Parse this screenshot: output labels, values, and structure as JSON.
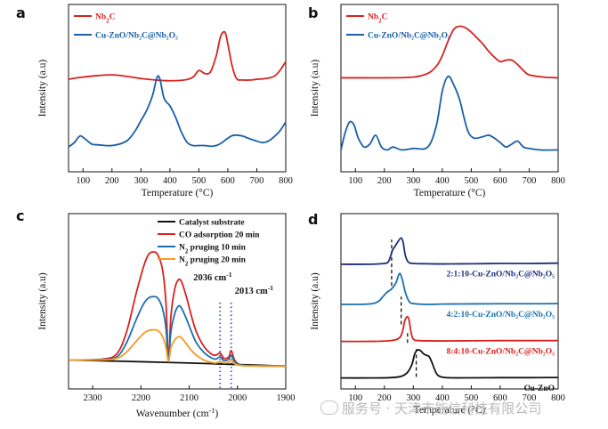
{
  "watermark": "服务号 · 天津市能信科技有限公司",
  "chart_data": [
    {
      "panel": "a",
      "type": "line",
      "xlabel": "Temperature (°C)",
      "ylabel": "Intensity (a.u)",
      "xlim": [
        50,
        800
      ],
      "xticks": [
        100,
        200,
        300,
        400,
        500,
        600,
        700,
        800
      ],
      "ylim": [
        0,
        1
      ],
      "yticks_shown": false,
      "legend_position": "top-left",
      "series": [
        {
          "name": "Nb2C",
          "label_base": "Nb",
          "label_sub": "2",
          "label_tail": "C",
          "color": "#d6231f",
          "x": [
            50,
            80,
            100,
            150,
            200,
            250,
            300,
            350,
            400,
            450,
            480,
            500,
            520,
            540,
            560,
            575,
            590,
            600,
            615,
            630,
            650,
            680,
            700,
            730,
            760,
            780,
            800
          ],
          "y": [
            0.56,
            0.57,
            0.575,
            0.585,
            0.59,
            0.58,
            0.565,
            0.555,
            0.55,
            0.555,
            0.575,
            0.62,
            0.6,
            0.61,
            0.72,
            0.85,
            0.88,
            0.8,
            0.65,
            0.565,
            0.555,
            0.555,
            0.56,
            0.565,
            0.58,
            0.62,
            0.68
          ]
        },
        {
          "name": "Cu-ZnO/Nb2C@Nb2O5",
          "label": "Cu-ZnO/Nb₂C@Nb₂O₅",
          "color": "#1a5fa8",
          "x": [
            50,
            70,
            90,
            110,
            130,
            150,
            200,
            250,
            280,
            300,
            320,
            340,
            355,
            365,
            380,
            400,
            420,
            440,
            460,
            480,
            500,
            520,
            540,
            560,
            580,
            600,
            620,
            650,
            670,
            700,
            720,
            740,
            760,
            780,
            800
          ],
          "y": [
            0.1,
            0.13,
            0.175,
            0.15,
            0.12,
            0.115,
            0.11,
            0.14,
            0.21,
            0.28,
            0.35,
            0.45,
            0.57,
            0.565,
            0.43,
            0.38,
            0.3,
            0.2,
            0.13,
            0.11,
            0.11,
            0.11,
            0.105,
            0.11,
            0.13,
            0.16,
            0.18,
            0.175,
            0.16,
            0.14,
            0.13,
            0.14,
            0.17,
            0.21,
            0.27
          ]
        }
      ]
    },
    {
      "panel": "b",
      "type": "line",
      "xlabel": "Temperature (°C)",
      "ylabel": "Intensity (a.u)",
      "xlim": [
        50,
        800
      ],
      "xticks": [
        100,
        200,
        300,
        400,
        500,
        600,
        700,
        800
      ],
      "ylim": [
        0,
        1
      ],
      "yticks_shown": false,
      "legend_position": "top-left",
      "series": [
        {
          "name": "Nb2C",
          "label_base": "Nb",
          "label_sub": "2",
          "label_tail": "C",
          "color": "#d6231f",
          "x": [
            50,
            100,
            200,
            300,
            350,
            380,
            400,
            420,
            440,
            460,
            480,
            500,
            520,
            540,
            560,
            580,
            600,
            620,
            640,
            660,
            680,
            700,
            750,
            800
          ],
          "y": [
            0.57,
            0.57,
            0.57,
            0.575,
            0.6,
            0.65,
            0.72,
            0.82,
            0.9,
            0.92,
            0.91,
            0.88,
            0.84,
            0.8,
            0.75,
            0.71,
            0.68,
            0.69,
            0.69,
            0.66,
            0.62,
            0.59,
            0.575,
            0.57
          ]
        },
        {
          "name": "Cu-ZnO/Nb2C@Nb2O5",
          "label": "Cu-ZnO/Nb₂C@Nb₂O₅",
          "color": "#1a5fa8",
          "x": [
            50,
            65,
            80,
            95,
            110,
            130,
            150,
            170,
            190,
            210,
            230,
            260,
            300,
            350,
            380,
            400,
            420,
            440,
            460,
            475,
            490,
            510,
            540,
            560,
            580,
            600,
            620,
            640,
            660,
            680,
            700,
            740,
            800
          ],
          "y": [
            0.08,
            0.2,
            0.27,
            0.25,
            0.16,
            0.1,
            0.12,
            0.18,
            0.1,
            0.08,
            0.1,
            0.08,
            0.09,
            0.1,
            0.25,
            0.48,
            0.58,
            0.52,
            0.42,
            0.3,
            0.2,
            0.16,
            0.17,
            0.18,
            0.16,
            0.13,
            0.1,
            0.12,
            0.14,
            0.1,
            0.09,
            0.08,
            0.08
          ]
        }
      ]
    },
    {
      "panel": "c",
      "type": "line",
      "xlabel": "Wavenumber (cm-1)",
      "xlabel_base": "Wavenumber (cm",
      "xlabel_sup": "-1",
      "xlabel_tail": ")",
      "ylabel": "Intensity (a.u)",
      "xlim": [
        2350,
        1900
      ],
      "x_reversed": true,
      "xticks": [
        2300,
        2200,
        2100,
        2000,
        1900
      ],
      "ylim": [
        0,
        1
      ],
      "yticks_shown": false,
      "legend_position": "top-right",
      "annotations": [
        {
          "text_base": "2036 cm",
          "text_sup": "-1",
          "x": 2036,
          "line_color": "#3b6fd0",
          "line_style": "dotted"
        },
        {
          "text_base": "2013 cm",
          "text_sup": "-1",
          "x": 2013,
          "line_color": "#3b6fd0",
          "line_style": "dotted"
        }
      ],
      "series": [
        {
          "name": "Catalyst substrate",
          "color": "#111111",
          "x": [
            2350,
            2300,
            2250,
            2200,
            2150,
            2100,
            2050,
            2000,
            1950,
            1900
          ],
          "y": [
            0.12,
            0.116,
            0.112,
            0.108,
            0.104,
            0.1,
            0.095,
            0.09,
            0.085,
            0.08
          ]
        },
        {
          "name": "CO adsorption 20 min",
          "color": "#d6231f",
          "x": [
            2350,
            2280,
            2250,
            2230,
            2210,
            2195,
            2185,
            2175,
            2165,
            2155,
            2148,
            2143,
            2138,
            2130,
            2122,
            2115,
            2105,
            2095,
            2085,
            2070,
            2055,
            2045,
            2036,
            2028,
            2018,
            2013,
            2006,
            1995,
            1970,
            1900
          ],
          "y": [
            0.12,
            0.125,
            0.16,
            0.3,
            0.55,
            0.72,
            0.8,
            0.82,
            0.8,
            0.7,
            0.48,
            0.12,
            0.4,
            0.58,
            0.64,
            0.62,
            0.52,
            0.4,
            0.3,
            0.21,
            0.16,
            0.15,
            0.165,
            0.13,
            0.14,
            0.18,
            0.12,
            0.09,
            0.082,
            0.08
          ]
        },
        {
          "name": "N2 pruging 10 min",
          "label_base": "N",
          "label_sub": "2",
          "label_tail": " pruging 10 min",
          "color": "#1a6fb0",
          "x": [
            2350,
            2280,
            2250,
            2230,
            2210,
            2195,
            2185,
            2175,
            2165,
            2155,
            2148,
            2143,
            2138,
            2130,
            2122,
            2115,
            2105,
            2095,
            2085,
            2070,
            2055,
            2045,
            2036,
            2028,
            2018,
            2013,
            2006,
            1995,
            1970,
            1900
          ],
          "y": [
            0.12,
            0.122,
            0.14,
            0.23,
            0.38,
            0.48,
            0.52,
            0.53,
            0.52,
            0.45,
            0.32,
            0.11,
            0.3,
            0.42,
            0.47,
            0.45,
            0.38,
            0.3,
            0.23,
            0.17,
            0.135,
            0.125,
            0.14,
            0.115,
            0.125,
            0.15,
            0.11,
            0.088,
            0.082,
            0.08
          ]
        },
        {
          "name": "N2 pruging 20 min",
          "label_base": "N",
          "label_sub": "2",
          "label_tail": " pruging 20 min",
          "color": "#f39a1e",
          "x": [
            2350,
            2280,
            2250,
            2230,
            2210,
            2195,
            2185,
            2175,
            2165,
            2155,
            2148,
            2143,
            2138,
            2130,
            2122,
            2115,
            2105,
            2095,
            2085,
            2070,
            2055,
            2045,
            2036,
            2028,
            2018,
            2013,
            2006,
            1995,
            1970,
            1900
          ],
          "y": [
            0.12,
            0.12,
            0.13,
            0.17,
            0.24,
            0.29,
            0.31,
            0.315,
            0.31,
            0.27,
            0.2,
            0.11,
            0.2,
            0.25,
            0.27,
            0.26,
            0.22,
            0.18,
            0.15,
            0.12,
            0.105,
            0.1,
            0.11,
            0.1,
            0.105,
            0.12,
            0.095,
            0.085,
            0.081,
            0.08
          ]
        }
      ]
    },
    {
      "panel": "d",
      "type": "line",
      "xlabel": "Temperature (°C)",
      "ylabel": "Intensity (a.u)",
      "xlim": [
        50,
        800
      ],
      "xticks": [
        100,
        200,
        300,
        400,
        500,
        600,
        700,
        800
      ],
      "ylim": [
        0,
        1
      ],
      "yticks_shown": false,
      "dashed_markers": [
        {
          "x": 225,
          "y": [
            0.6,
            0.9
          ]
        },
        {
          "x": 258,
          "y": [
            0.35,
            0.53
          ]
        },
        {
          "x": 280,
          "y": [
            0.23,
            0.3
          ]
        },
        {
          "x": 310,
          "y": [
            0.01,
            0.19
          ]
        }
      ],
      "series": [
        {
          "name": "2:1:10-Cu-ZnO/Nb2C@Nb2O5",
          "label": "2:1:10-Cu-ZnO/Nb₂C@Nb₂O₅",
          "color": "#1c2f7e",
          "x": [
            50,
            150,
            200,
            215,
            228,
            238,
            248,
            258,
            265,
            272,
            282,
            300,
            350,
            400,
            500,
            600,
            700,
            800
          ],
          "y": [
            0.74,
            0.74,
            0.745,
            0.76,
            0.83,
            0.86,
            0.89,
            0.91,
            0.88,
            0.8,
            0.755,
            0.745,
            0.743,
            0.742,
            0.743,
            0.745,
            0.745,
            0.747
          ]
        },
        {
          "name": "4:2:10-Cu-ZnO/Nb2C@Nb2O5",
          "label": "4:2:10-Cu-ZnO/Nb₂C@Nb₂O₅",
          "color": "#1a6fb0",
          "x": [
            50,
            120,
            160,
            180,
            195,
            210,
            225,
            240,
            252,
            262,
            272,
            285,
            300,
            350,
            400,
            500,
            600,
            700,
            800
          ],
          "y": [
            0.48,
            0.48,
            0.485,
            0.5,
            0.53,
            0.56,
            0.58,
            0.62,
            0.68,
            0.64,
            0.56,
            0.5,
            0.485,
            0.48,
            0.482,
            0.483,
            0.484,
            0.484,
            0.485
          ]
        },
        {
          "name": "8:4:10-Cu-ZnO/Nb2C@Nb2O5",
          "label": "8:4:10-Cu-ZnO/Nb₂C@Nb₂O₅",
          "color": "#d6231f",
          "x": [
            50,
            150,
            220,
            250,
            262,
            270,
            278,
            285,
            292,
            300,
            320,
            400,
            500,
            600,
            700,
            800
          ],
          "y": [
            0.24,
            0.24,
            0.245,
            0.26,
            0.3,
            0.37,
            0.4,
            0.38,
            0.3,
            0.255,
            0.245,
            0.243,
            0.244,
            0.245,
            0.245,
            0.245
          ]
        },
        {
          "name": "Cu-ZnO",
          "color": "#111111",
          "x": [
            50,
            150,
            220,
            260,
            280,
            295,
            305,
            315,
            325,
            335,
            345,
            355,
            365,
            375,
            385,
            400,
            430,
            500,
            600,
            700,
            800
          ],
          "y": [
            0.003,
            0.003,
            0.005,
            0.015,
            0.04,
            0.09,
            0.16,
            0.185,
            0.18,
            0.16,
            0.15,
            0.14,
            0.1,
            0.05,
            0.02,
            0.008,
            0.004,
            0.004,
            0.005,
            0.005,
            0.006
          ]
        }
      ]
    }
  ]
}
